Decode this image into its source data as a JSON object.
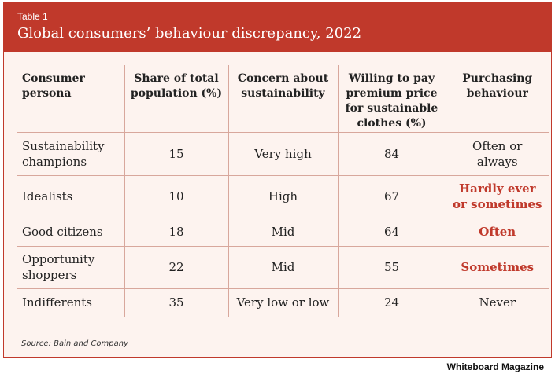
{
  "header": {
    "tag": "Table 1",
    "title": "Global consumers’ behaviour discrepancy, 2022"
  },
  "table": {
    "columns": [
      "Consumer persona",
      "Share of total population (%)",
      "Concern about sustainability",
      "Willing to pay premium price for sustainable clothes (%)",
      "Purchasing behaviour"
    ],
    "rows": [
      {
        "persona": "Sustainability champions",
        "share": "15",
        "concern": "Very high",
        "willing": "84",
        "behaviour": "Often or always",
        "highlight": false
      },
      {
        "persona": "Idealists",
        "share": "10",
        "concern": "High",
        "willing": "67",
        "behaviour": "Hardly ever or sometimes",
        "highlight": true
      },
      {
        "persona": "Good citizens",
        "share": "18",
        "concern": "Mid",
        "willing": "64",
        "behaviour": "Often",
        "highlight": true
      },
      {
        "persona": "Opportunity shoppers",
        "share": "22",
        "concern": "Mid",
        "willing": "55",
        "behaviour": "Sometimes",
        "highlight": true
      },
      {
        "persona": "Indifferents",
        "share": "35",
        "concern": "Very low or low",
        "willing": "24",
        "behaviour": "Never",
        "highlight": false
      }
    ]
  },
  "source": "Source: Bain and Company",
  "brand": "Whiteboard Magazine",
  "colors": {
    "accent": "#c0392b",
    "background": "#fdf3ef",
    "rule": "#d8a79c"
  }
}
